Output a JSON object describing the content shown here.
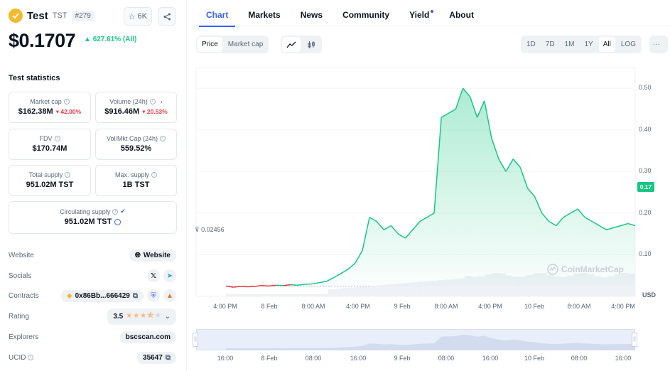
{
  "coin": {
    "name": "Test",
    "symbol": "TST",
    "rank": "#279",
    "watchlist_count": "6K",
    "price": "$0.1707",
    "change": "627.61% (All)"
  },
  "stats": {
    "title": "Test statistics",
    "market_cap": {
      "label": "Market cap",
      "value": "$162.38M",
      "change": "42.00%"
    },
    "volume": {
      "label": "Volume (24h)",
      "value": "$916.46M",
      "change": "20.53%"
    },
    "fdv": {
      "label": "FDV",
      "value": "$170.74M"
    },
    "vol_mkt": {
      "label": "Vol/Mkt Cap (24h)",
      "value": "559.52%"
    },
    "total_supply": {
      "label": "Total supply",
      "value": "951.02M TST"
    },
    "max_supply": {
      "label": "Max. supply",
      "value": "1B TST"
    },
    "circulating": {
      "label": "Circulating supply",
      "value": "951.02M TST"
    }
  },
  "info": {
    "website_label": "Website",
    "website_value": "Website",
    "socials_label": "Socials",
    "contracts_label": "Contracts",
    "contract_value": "0x86Bb...666429",
    "rating_label": "Rating",
    "rating_value": "3.5",
    "rating_stars": 3.5,
    "explorers_label": "Explorers",
    "explorer_value": "bscscan.com",
    "ucid_label": "UCID",
    "ucid_value": "35647"
  },
  "tabs": [
    "Chart",
    "Markets",
    "News",
    "Community",
    "Yield",
    "About"
  ],
  "toggles": {
    "price": "Price",
    "market_cap": "Market cap"
  },
  "ranges": [
    "1D",
    "7D",
    "1M",
    "1Y",
    "All",
    "LOG"
  ],
  "colors": {
    "accent": "#3861fb",
    "up": "#16c784",
    "down": "#ea3943"
  },
  "chart_data": {
    "type": "area",
    "currency_label": "USD",
    "y_ticks": [
      "0.10",
      "0.20",
      "0.30",
      "0.40",
      "0.50"
    ],
    "ylim": [
      0,
      0.55
    ],
    "x_ticks": [
      "4:00 PM",
      "8 Feb",
      "8:00 AM",
      "4:00 PM",
      "9 Feb",
      "8:00 AM",
      "4:00 PM",
      "10 Feb",
      "8:00 AM",
      "4:00 PM"
    ],
    "nav_ticks": [
      "16:00",
      "8 Feb",
      "08:00",
      "16:00",
      "9 Feb",
      "08:00",
      "16:00",
      "10 Feb",
      "08:00",
      "16:00"
    ],
    "baseline_value": 0.02456,
    "baseline_label": "0.02456",
    "current_label": "0.17",
    "watermark": "CoinMarketCap",
    "series": [
      {
        "values": [
          0.025,
          0.022,
          0.024,
          0.023,
          0.024,
          0.026,
          0.025,
          0.027,
          0.026,
          0.028,
          0.027,
          0.029,
          0.03,
          0.033,
          0.036,
          0.045,
          0.055,
          0.065,
          0.08,
          0.11,
          0.19,
          0.18,
          0.16,
          0.17,
          0.15,
          0.14,
          0.16,
          0.18,
          0.19,
          0.2,
          0.43,
          0.44,
          0.45,
          0.5,
          0.48,
          0.43,
          0.47,
          0.38,
          0.33,
          0.3,
          0.33,
          0.31,
          0.26,
          0.24,
          0.2,
          0.18,
          0.17,
          0.19,
          0.2,
          0.21,
          0.19,
          0.18,
          0.17,
          0.16,
          0.165,
          0.17,
          0.175,
          0.17
        ]
      }
    ]
  }
}
